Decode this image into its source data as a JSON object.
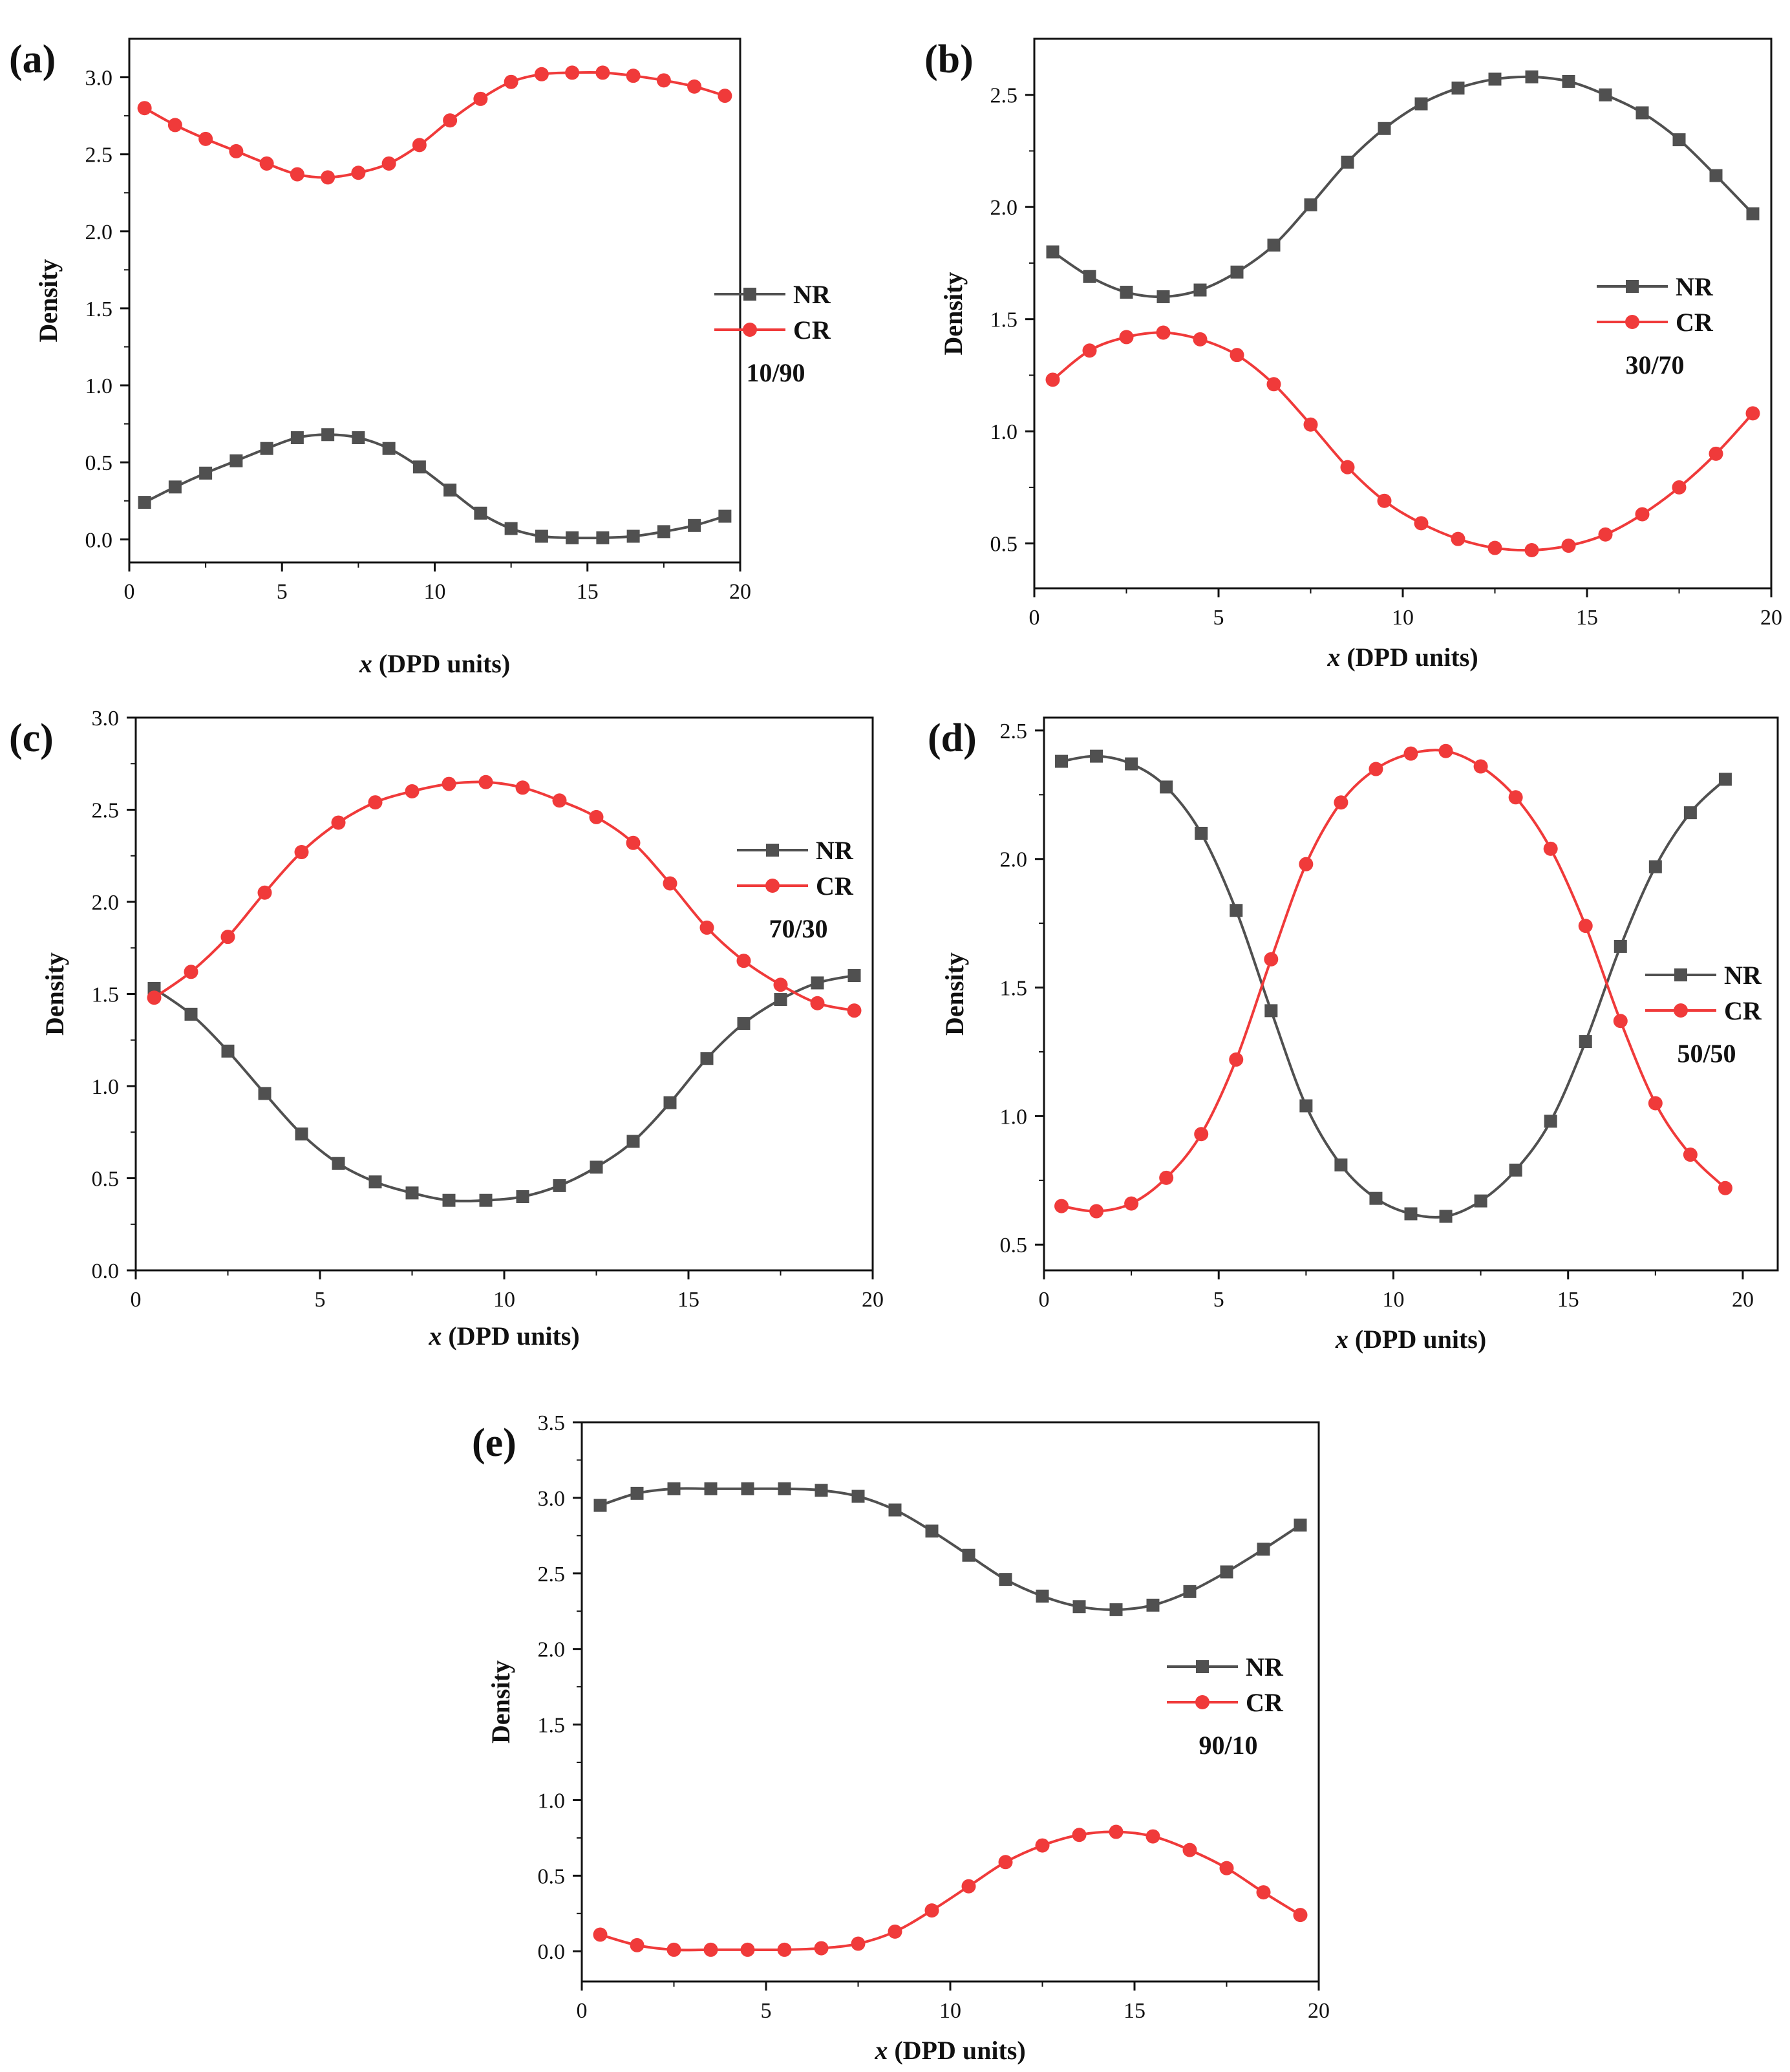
{
  "figure": {
    "colors": {
      "NR": "#505050",
      "CR": "#f03a3a",
      "axis": "#111111"
    }
  },
  "chart_data": [
    {
      "type": "line",
      "label": "(a)",
      "annotation": "10/90",
      "xlabel_italic": "x",
      "xlabel_rest": " (DPD units)",
      "ylabel": "Density",
      "xlim": [
        0,
        20
      ],
      "ylim": [
        -0.15,
        3.25
      ],
      "xticks": [
        "0",
        "5",
        "10",
        "15",
        "20"
      ],
      "yticks": [
        "0.0",
        "0.5",
        "1.0",
        "1.5",
        "2.0",
        "2.5",
        "3.0"
      ],
      "legend_position": "right",
      "x": [
        0.5,
        1.5,
        2.5,
        3.5,
        4.5,
        5.5,
        6.5,
        7.5,
        8.5,
        9.5,
        10.5,
        11.5,
        12.5,
        13.5,
        14.5,
        15.5,
        16.5,
        17.5,
        18.5,
        19.5
      ],
      "series": [
        {
          "name": "NR",
          "marker": "square",
          "values": [
            0.24,
            0.34,
            0.43,
            0.51,
            0.59,
            0.66,
            0.68,
            0.66,
            0.59,
            0.47,
            0.32,
            0.17,
            0.07,
            0.02,
            0.01,
            0.01,
            0.02,
            0.05,
            0.09,
            0.15
          ]
        },
        {
          "name": "CR",
          "marker": "circle",
          "values": [
            2.8,
            2.69,
            2.6,
            2.52,
            2.44,
            2.37,
            2.35,
            2.38,
            2.44,
            2.56,
            2.72,
            2.86,
            2.97,
            3.02,
            3.03,
            3.03,
            3.01,
            2.98,
            2.94,
            2.88
          ]
        }
      ]
    },
    {
      "type": "line",
      "label": "(b)",
      "annotation": "30/70",
      "xlabel_italic": "x",
      "xlabel_rest": " (DPD units)",
      "ylabel": "Density",
      "xlim": [
        0,
        20
      ],
      "ylim": [
        0.3,
        2.75
      ],
      "xticks": [
        "0",
        "5",
        "10",
        "15",
        "20"
      ],
      "yticks": [
        "0.5",
        "1.0",
        "1.5",
        "2.0",
        "2.5"
      ],
      "legend_position": "right",
      "x": [
        0.5,
        1.5,
        2.5,
        3.5,
        4.5,
        5.5,
        6.5,
        7.5,
        8.5,
        9.5,
        10.5,
        11.5,
        12.5,
        13.5,
        14.5,
        15.5,
        16.5,
        17.5,
        18.5,
        19.5
      ],
      "series": [
        {
          "name": "NR",
          "marker": "square",
          "values": [
            1.8,
            1.69,
            1.62,
            1.6,
            1.63,
            1.71,
            1.83,
            2.01,
            2.2,
            2.35,
            2.46,
            2.53,
            2.57,
            2.58,
            2.56,
            2.5,
            2.42,
            2.3,
            2.14,
            1.97
          ]
        },
        {
          "name": "CR",
          "marker": "circle",
          "values": [
            1.23,
            1.36,
            1.42,
            1.44,
            1.41,
            1.34,
            1.21,
            1.03,
            0.84,
            0.69,
            0.59,
            0.52,
            0.48,
            0.47,
            0.49,
            0.54,
            0.63,
            0.75,
            0.9,
            1.08
          ]
        }
      ]
    },
    {
      "type": "line",
      "label": "(c)",
      "annotation": "70/30",
      "xlabel_italic": "x",
      "xlabel_rest": " (DPD units)",
      "ylabel": "Density",
      "xlim": [
        0,
        20
      ],
      "ylim": [
        0.0,
        3.0
      ],
      "xticks": [
        "0",
        "5",
        "10",
        "15",
        "20"
      ],
      "yticks": [
        "0.0",
        "0.5",
        "1.0",
        "1.5",
        "2.0",
        "2.5",
        "3.0"
      ],
      "legend_position": "right",
      "x": [
        0.5,
        1.5,
        2.5,
        3.5,
        4.5,
        5.5,
        6.5,
        7.5,
        8.5,
        9.5,
        10.5,
        11.5,
        12.5,
        13.5,
        14.5,
        15.5,
        16.5,
        17.5,
        18.5,
        19.5
      ],
      "series": [
        {
          "name": "NR",
          "marker": "square",
          "values": [
            1.53,
            1.39,
            1.19,
            0.96,
            0.74,
            0.58,
            0.48,
            0.42,
            0.38,
            0.38,
            0.4,
            0.46,
            0.56,
            0.7,
            0.91,
            1.15,
            1.34,
            1.47,
            1.56,
            1.6
          ]
        },
        {
          "name": "CR",
          "marker": "circle",
          "values": [
            1.48,
            1.62,
            1.81,
            2.05,
            2.27,
            2.43,
            2.54,
            2.6,
            2.64,
            2.65,
            2.62,
            2.55,
            2.46,
            2.32,
            2.1,
            1.86,
            1.68,
            1.55,
            1.45,
            1.41
          ]
        }
      ]
    },
    {
      "type": "line",
      "label": "(d)",
      "annotation": "50/50",
      "xlabel_italic": "x",
      "xlabel_rest": " (DPD units)",
      "ylabel": "Density",
      "xlim": [
        0,
        21
      ],
      "ylim": [
        0.4,
        2.55
      ],
      "xticks": [
        "0",
        "5",
        "10",
        "15",
        "20"
      ],
      "yticks": [
        "0.5",
        "1.0",
        "1.5",
        "2.0",
        "2.5"
      ],
      "legend_position": "right",
      "x": [
        0.5,
        1.5,
        2.5,
        3.5,
        4.5,
        5.5,
        6.5,
        7.5,
        8.5,
        9.5,
        10.5,
        11.5,
        12.5,
        13.5,
        14.5,
        15.5,
        16.5,
        17.5,
        18.5,
        19.5
      ],
      "series": [
        {
          "name": "NR",
          "marker": "square",
          "values": [
            2.38,
            2.4,
            2.37,
            2.28,
            2.1,
            1.8,
            1.41,
            1.04,
            0.81,
            0.68,
            0.62,
            0.61,
            0.67,
            0.79,
            0.98,
            1.29,
            1.66,
            1.97,
            2.18,
            2.31
          ]
        },
        {
          "name": "CR",
          "marker": "circle",
          "values": [
            0.65,
            0.63,
            0.66,
            0.76,
            0.93,
            1.22,
            1.61,
            1.98,
            2.22,
            2.35,
            2.41,
            2.42,
            2.36,
            2.24,
            2.04,
            1.74,
            1.37,
            1.05,
            0.85,
            0.72
          ]
        }
      ]
    },
    {
      "type": "line",
      "label": "(e)",
      "annotation": "90/10",
      "xlabel_italic": "x",
      "xlabel_rest": " (DPD units)",
      "ylabel": "Density",
      "xlim": [
        0,
        20
      ],
      "ylim": [
        -0.2,
        3.5
      ],
      "xticks": [
        "0",
        "5",
        "10",
        "15",
        "20"
      ],
      "yticks": [
        "0.0",
        "0.5",
        "1.0",
        "1.5",
        "2.0",
        "2.5",
        "3.0",
        "3.5"
      ],
      "legend_position": "right",
      "x": [
        0.5,
        1.5,
        2.5,
        3.5,
        4.5,
        5.5,
        6.5,
        7.5,
        8.5,
        9.5,
        10.5,
        11.5,
        12.5,
        13.5,
        14.5,
        15.5,
        16.5,
        17.5,
        18.5,
        19.5
      ],
      "series": [
        {
          "name": "NR",
          "marker": "square",
          "values": [
            2.95,
            3.03,
            3.06,
            3.06,
            3.06,
            3.06,
            3.05,
            3.01,
            2.92,
            2.78,
            2.62,
            2.46,
            2.35,
            2.28,
            2.26,
            2.29,
            2.38,
            2.51,
            2.66,
            2.82
          ]
        },
        {
          "name": "CR",
          "marker": "circle",
          "values": [
            0.11,
            0.04,
            0.01,
            0.01,
            0.01,
            0.01,
            0.02,
            0.05,
            0.13,
            0.27,
            0.43,
            0.59,
            0.7,
            0.77,
            0.79,
            0.76,
            0.67,
            0.55,
            0.39,
            0.24
          ]
        }
      ]
    }
  ]
}
